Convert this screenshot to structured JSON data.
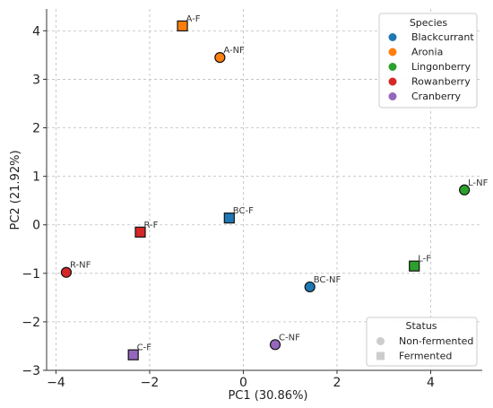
{
  "chart_data": {
    "type": "scatter",
    "xlabel": "PC1 (30.86%)",
    "ylabel": "PC2 (21.92%)",
    "xlim": [
      -4.2,
      5.1
    ],
    "ylim": [
      -3.0,
      4.45
    ],
    "x_ticks": [
      -4,
      -2,
      0,
      2,
      4
    ],
    "y_ticks": [
      -3,
      -2,
      -1,
      0,
      1,
      2,
      3,
      4
    ],
    "grid": true,
    "species_legend": {
      "title": "Species",
      "placement": "top-right",
      "entries": [
        {
          "name": "Blackcurrant",
          "color": "#1f77b4"
        },
        {
          "name": "Aronia",
          "color": "#ff7f0e"
        },
        {
          "name": "Lingonberry",
          "color": "#2ca02c"
        },
        {
          "name": "Rowanberry",
          "color": "#d62728"
        },
        {
          "name": "Cranberry",
          "color": "#9467bd"
        }
      ]
    },
    "status_legend": {
      "title": "Status",
      "placement": "bottom-right",
      "entries": [
        {
          "name": "Non-fermented",
          "marker": "circle"
        },
        {
          "name": "Fermented",
          "marker": "square"
        }
      ]
    },
    "points": [
      {
        "label": "A-F",
        "species": "Aronia",
        "status": "Fermented",
        "x": -1.3,
        "y": 4.1
      },
      {
        "label": "A-NF",
        "species": "Aronia",
        "status": "Non-fermented",
        "x": -0.5,
        "y": 3.45
      },
      {
        "label": "BC-F",
        "species": "Blackcurrant",
        "status": "Fermented",
        "x": -0.3,
        "y": 0.14
      },
      {
        "label": "BC-NF",
        "species": "Blackcurrant",
        "status": "Non-fermented",
        "x": 1.42,
        "y": -1.28
      },
      {
        "label": "L-NF",
        "species": "Lingonberry",
        "status": "Non-fermented",
        "x": 4.72,
        "y": 0.72
      },
      {
        "label": "L-F",
        "species": "Lingonberry",
        "status": "Fermented",
        "x": 3.65,
        "y": -0.85
      },
      {
        "label": "R-F",
        "species": "Rowanberry",
        "status": "Fermented",
        "x": -2.2,
        "y": -0.15
      },
      {
        "label": "R-NF",
        "species": "Rowanberry",
        "status": "Non-fermented",
        "x": -3.78,
        "y": -0.98
      },
      {
        "label": "C-F",
        "species": "Cranberry",
        "status": "Fermented",
        "x": -2.35,
        "y": -2.68
      },
      {
        "label": "C-NF",
        "species": "Cranberry",
        "status": "Non-fermented",
        "x": 0.68,
        "y": -2.47
      }
    ]
  }
}
